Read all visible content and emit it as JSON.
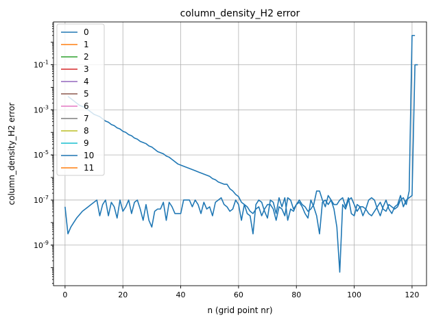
{
  "chart_data": {
    "type": "line",
    "title": "column_density_H2 error",
    "xlabel": "n (grid point nr)",
    "ylabel": "column_density_H2 error",
    "yscale": "log",
    "xlim": [
      -4,
      125
    ],
    "ylim_log10": [
      -10.8,
      0.9
    ],
    "xticks": [
      0,
      20,
      40,
      60,
      80,
      100,
      120
    ],
    "yticks": [
      {
        "exp": -9,
        "label": "10^-9"
      },
      {
        "exp": -7,
        "label": "10^-7"
      },
      {
        "exp": -5,
        "label": "10^-5"
      },
      {
        "exp": -3,
        "label": "10^-3"
      },
      {
        "exp": -1,
        "label": "10^-1"
      }
    ],
    "grid": true,
    "legend_position": "upper-left",
    "legend": [
      "0",
      "1",
      "2",
      "3",
      "4",
      "5",
      "6",
      "7",
      "8",
      "9",
      "10",
      "11"
    ],
    "colors": [
      "#1f77b4",
      "#ff7f0e",
      "#2ca02c",
      "#d62728",
      "#9467bd",
      "#8c564b",
      "#e377c2",
      "#7f7f7f",
      "#bcbd22",
      "#17becf",
      "#1f77b4",
      "#ff7f0e"
    ],
    "series": [
      {
        "name": "10",
        "color": "#1f77b4",
        "x_start": 0,
        "log10_y": [
          -7.3,
          -8.5,
          -8.2,
          -8.0,
          -7.8,
          -7.65,
          -7.5,
          -7.4,
          -7.3,
          -7.2,
          -7.1,
          -7.0,
          -7.7,
          -7.2,
          -7.0,
          -7.7,
          -7.1,
          -7.3,
          -7.8,
          -7.0,
          -7.5,
          -7.3,
          -7.0,
          -7.6,
          -7.1,
          -7.0,
          -7.4,
          -7.9,
          -7.2,
          -7.9,
          -8.2,
          -7.5,
          -7.4,
          -7.4,
          -7.1,
          -7.9,
          -7.1,
          -7.3,
          -7.6,
          -7.6,
          -7.6,
          -7.0,
          -7.0,
          -7.0,
          -7.3,
          -7.0,
          -7.2,
          -7.6,
          -7.1,
          -7.4,
          -7.3,
          -7.7,
          -7.1,
          -7.0,
          -6.9,
          -7.2,
          -7.3,
          -7.5,
          -7.4,
          -7.0,
          -7.2,
          -7.9,
          -7.2,
          -7.6,
          -7.7,
          -8.5,
          -7.2,
          -7.0,
          -7.1,
          -7.5,
          -7.8,
          -7.0,
          -7.1,
          -7.6,
          -6.9,
          -7.3,
          -6.9,
          -7.9,
          -7.4,
          -7.5,
          -7.2,
          -7.1,
          -7.3,
          -7.6,
          -7.8,
          -7.0,
          -7.3,
          -7.7,
          -8.5,
          -7.1,
          -7.0,
          -7.2,
          -7.0,
          -7.2,
          -7.2,
          -7.0,
          -6.9,
          -7.3,
          -6.9,
          -7.6,
          -7.7,
          -7.2,
          -7.3,
          -7.3,
          -7.4,
          -7.6,
          -7.7,
          -7.5,
          -7.3,
          -7.1,
          -7.4,
          -7.5,
          -7.2,
          -7.3,
          -7.4,
          -7.3,
          -7.0,
          -6.9,
          -7.2,
          -6.6,
          0.3,
          0.3
        ]
      },
      {
        "name": "0",
        "color": "#1f77b4",
        "x_start": 1,
        "log10_y": [
          -2.4,
          -2.5,
          -2.6,
          -2.7,
          -2.8,
          -2.85,
          -2.9,
          -3.0,
          -3.1,
          -3.2,
          -3.25,
          -3.3,
          -3.4,
          -3.5,
          -3.55,
          -3.65,
          -3.7,
          -3.8,
          -3.85,
          -3.95,
          -4.0,
          -4.1,
          -4.15,
          -4.25,
          -4.3,
          -4.4,
          -4.45,
          -4.5,
          -4.6,
          -4.65,
          -4.75,
          -4.85,
          -4.9,
          -4.95,
          -5.05,
          -5.1,
          -5.2,
          -5.3,
          -5.4,
          -5.45,
          -5.5,
          -5.55,
          -5.6,
          -5.65,
          -5.7,
          -5.75,
          -5.8,
          -5.85,
          -5.9,
          -5.95,
          -6.05,
          -6.1,
          -6.2,
          -6.25,
          -6.3,
          -6.3,
          -6.5,
          -6.6,
          -6.75,
          -6.85,
          -7.1,
          -7.2,
          -7.3,
          -7.5,
          -7.6,
          -7.4,
          -7.3,
          -7.7,
          -7.4,
          -7.2,
          -7.2,
          -7.4,
          -7.9,
          -7.3,
          -7.4,
          -7.7,
          -6.9,
          -7.0,
          -7.4,
          -7.2,
          -7.0,
          -7.2,
          -7.3,
          -7.5,
          -7.4,
          -7.2,
          -6.6,
          -6.6,
          -7.0,
          -7.3,
          -6.8,
          -7.0,
          -7.4,
          -8.2,
          -10.2,
          -7.2,
          -7.4,
          -7.0,
          -6.9,
          -7.2,
          -7.5,
          -7.3,
          -7.7,
          -7.4,
          -7.0,
          -6.9,
          -7.0,
          -7.4,
          -7.7,
          -7.3,
          -7.0,
          -7.4,
          -7.6,
          -7.3,
          -7.2,
          -6.8,
          -7.3,
          -7.0,
          -6.9,
          -6.8,
          -1.0,
          -1.0
        ]
      }
    ]
  }
}
